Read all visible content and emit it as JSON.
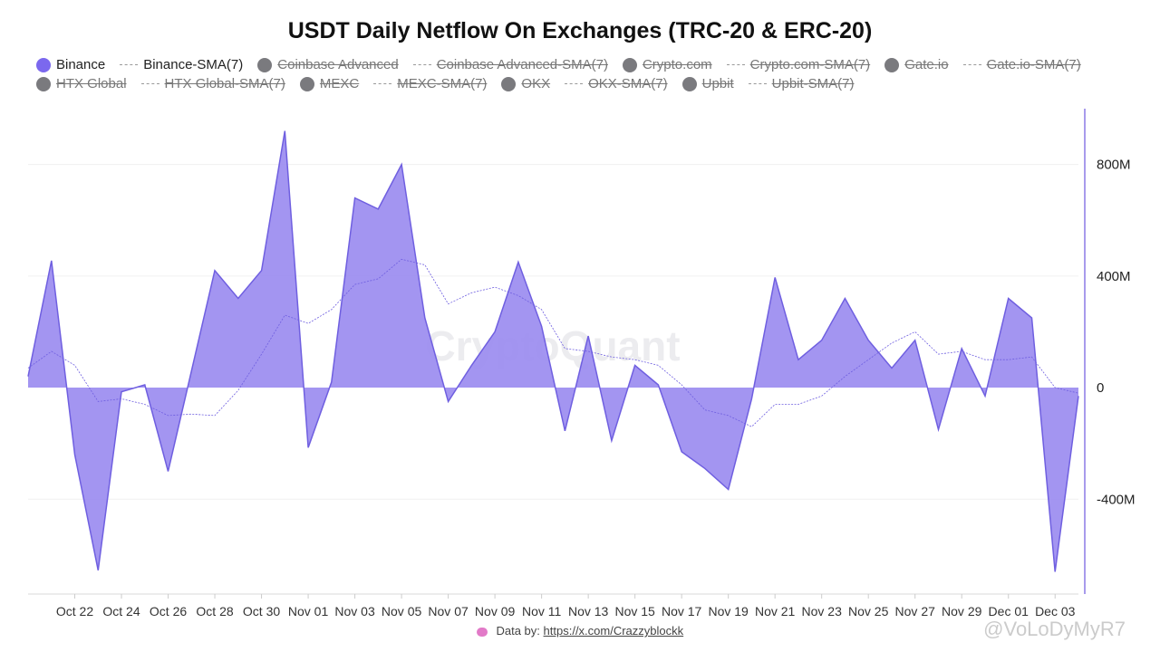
{
  "chart_data": {
    "type": "area",
    "title": "USDT Daily Netflow On Exchanges (TRC-20 & ERC-20)",
    "x": [
      "Oct 20",
      "Oct 21",
      "Oct 22",
      "Oct 23",
      "Oct 24",
      "Oct 25",
      "Oct 26",
      "Oct 27",
      "Oct 28",
      "Oct 29",
      "Oct 30",
      "Oct 31",
      "Nov 01",
      "Nov 02",
      "Nov 03",
      "Nov 04",
      "Nov 05",
      "Nov 06",
      "Nov 07",
      "Nov 08",
      "Nov 09",
      "Nov 10",
      "Nov 11",
      "Nov 12",
      "Nov 13",
      "Nov 14",
      "Nov 15",
      "Nov 16",
      "Nov 17",
      "Nov 18",
      "Nov 19",
      "Nov 20",
      "Nov 21",
      "Nov 22",
      "Nov 23",
      "Nov 24",
      "Nov 25",
      "Nov 26",
      "Nov 27",
      "Nov 28",
      "Nov 29",
      "Nov 30",
      "Dec 01",
      "Dec 02",
      "Dec 03",
      "Dec 04"
    ],
    "xtick_labels": [
      "Oct 22",
      "Oct 24",
      "Oct 26",
      "Oct 28",
      "Oct 30",
      "Nov 01",
      "Nov 03",
      "Nov 05",
      "Nov 07",
      "Nov 09",
      "Nov 11",
      "Nov 13",
      "Nov 15",
      "Nov 17",
      "Nov 19",
      "Nov 21",
      "Nov 23",
      "Nov 25",
      "Nov 27",
      "Nov 29",
      "Dec 01",
      "Dec 03"
    ],
    "y_ticks": [
      800,
      400,
      0,
      -400
    ],
    "y_tick_labels": [
      "800M",
      "400M",
      "0",
      "-400M"
    ],
    "ylim": [
      -740,
      1000
    ],
    "y_unit": "M",
    "series": [
      {
        "name": "Binance",
        "type": "area",
        "values": [
          40,
          455,
          -240,
          -655,
          -15,
          10,
          -300,
          60,
          420,
          320,
          420,
          920,
          -215,
          20,
          680,
          640,
          800,
          250,
          -50,
          80,
          200,
          450,
          220,
          -155,
          185,
          -190,
          80,
          10,
          -230,
          -290,
          -365,
          -40,
          395,
          100,
          170,
          320,
          170,
          70,
          170,
          -150,
          140,
          -30,
          320,
          250,
          -660,
          -30
        ]
      },
      {
        "name": "Binance-SMA(7)",
        "type": "line",
        "values": [
          70,
          130,
          80,
          -50,
          -40,
          -60,
          -100,
          -95,
          -100,
          -10,
          120,
          260,
          230,
          280,
          370,
          390,
          460,
          440,
          300,
          340,
          360,
          330,
          280,
          140,
          130,
          110,
          100,
          80,
          10,
          -80,
          -100,
          -140,
          -60,
          -60,
          -30,
          40,
          100,
          160,
          200,
          120,
          130,
          100,
          100,
          110,
          0,
          -20
        ]
      }
    ],
    "legend": [
      {
        "label": "Binance",
        "kind": "dot",
        "color": "#7b68ee",
        "active": true
      },
      {
        "label": "Binance-SMA(7)",
        "kind": "dash",
        "color": "#999999",
        "active": true
      },
      {
        "label": "Coinbase Advanced",
        "kind": "dot",
        "color": "#7a7a7e",
        "active": false
      },
      {
        "label": "Coinbase Advanced-SMA(7)",
        "kind": "dash",
        "color": "#999999",
        "active": false
      },
      {
        "label": "Crypto.com",
        "kind": "dot",
        "color": "#7a7a7e",
        "active": false
      },
      {
        "label": "Crypto.com-SMA(7)",
        "kind": "dash",
        "color": "#999999",
        "active": false
      },
      {
        "label": "Gate.io",
        "kind": "dot",
        "color": "#7a7a7e",
        "active": false
      },
      {
        "label": "Gate.io-SMA(7)",
        "kind": "dash",
        "color": "#999999",
        "active": false
      },
      {
        "label": "HTX Global",
        "kind": "dot",
        "color": "#7a7a7e",
        "active": false
      },
      {
        "label": "HTX Global-SMA(7)",
        "kind": "dash",
        "color": "#999999",
        "active": false
      },
      {
        "label": "MEXC",
        "kind": "dot",
        "color": "#7a7a7e",
        "active": false
      },
      {
        "label": "MEXC-SMA(7)",
        "kind": "dash",
        "color": "#999999",
        "active": false
      },
      {
        "label": "OKX",
        "kind": "dot",
        "color": "#7a7a7e",
        "active": false
      },
      {
        "label": "OKX-SMA(7)",
        "kind": "dash",
        "color": "#999999",
        "active": false
      },
      {
        "label": "Upbit",
        "kind": "dot",
        "color": "#7a7a7e",
        "active": false
      },
      {
        "label": "Upbit-SMA(7)",
        "kind": "dash",
        "color": "#999999",
        "active": false
      }
    ],
    "legend_placement": "top",
    "grid": "horizontal",
    "colors": {
      "area_fill": "#9b8cf0",
      "area_stroke": "#6f5fe0",
      "sma_line": "#6f5fe0",
      "axis": "#8c7ae6"
    }
  },
  "watermark": "CryptoQuant",
  "footer": {
    "prefix": "Data by:",
    "link": "https://x.com/Crazzyblockk"
  },
  "user_watermark": "@VoLoDyMyR7"
}
